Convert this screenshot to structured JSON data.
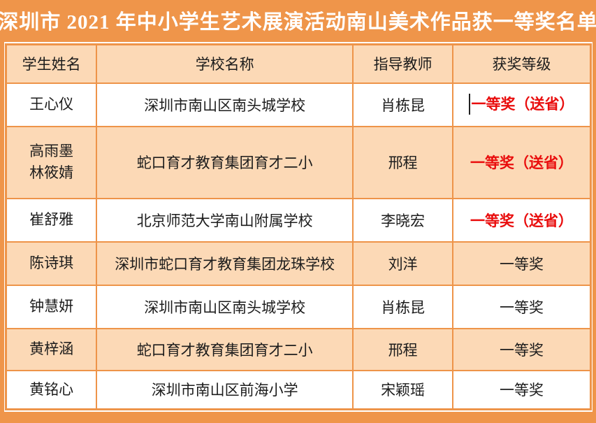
{
  "title": "深圳市 2021 年中小学生艺术展演活动南山美术作品获一等奖名单",
  "colors": {
    "background_orange": "#EF954A",
    "cell_peach": "#FCD9B6",
    "border_orange": "#EE9449",
    "award_red": "#E90D0D",
    "text_black": "#1C1C1C",
    "title_white": "#FFFFFF"
  },
  "table": {
    "headers": [
      "学生姓名",
      "学校名称",
      "指导教师",
      "获奖等级"
    ],
    "rows": [
      {
        "student": "王心仪",
        "school": "深圳市南山区南头城学校",
        "teacher": "肖栋昆",
        "award": "一等奖（送省）"
      },
      {
        "student": "高雨墨\n林筱婧",
        "school": "蛇口育才教育集团育才二小",
        "teacher": "邢程",
        "award": "一等奖（送省）"
      },
      {
        "student": "崔舒雅",
        "school": "北京师范大学南山附属学校",
        "teacher": "李晓宏",
        "award": "一等奖（送省）"
      },
      {
        "student": "陈诗琪",
        "school": "深圳市蛇口育才教育集团龙珠学校",
        "teacher": "刘洋",
        "award": "一等奖"
      },
      {
        "student": "钟慧妍",
        "school": "深圳市南山区南头城学校",
        "teacher": "肖栋昆",
        "award": "一等奖"
      },
      {
        "student": "黄梓涵",
        "school": "蛇口育才教育集团育才二小",
        "teacher": "邢程",
        "award": "一等奖"
      },
      {
        "student": "黄铭心",
        "school": "深圳市南山区前海小学",
        "teacher": "宋颖瑶",
        "award": "一等奖"
      }
    ]
  }
}
